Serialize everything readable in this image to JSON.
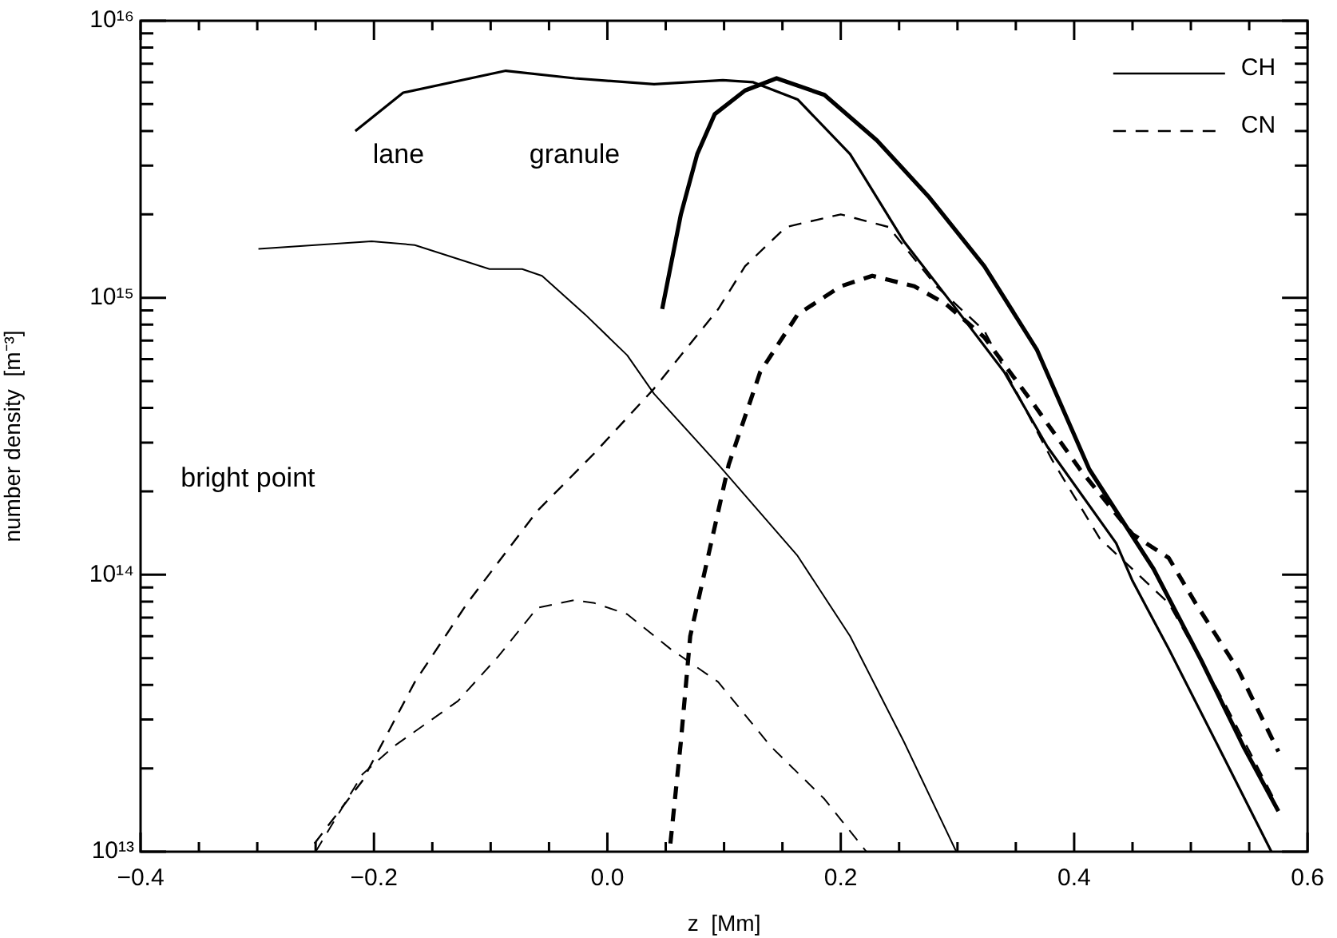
{
  "chart_data": {
    "type": "line",
    "xlabel": "z  [Mm]",
    "ylabel": "number density  [m⁻³]",
    "log": "y",
    "legend": "top right",
    "xlim": [
      -0.4,
      0.6
    ],
    "ylim": [
      10000000000000.0,
      1e+16
    ],
    "xticks": [
      {
        "value": -0.4,
        "label": "−0.4"
      },
      {
        "value": -0.35,
        "label": null
      },
      {
        "value": -0.3,
        "label": null
      },
      {
        "value": -0.25,
        "label": null
      },
      {
        "value": -0.2,
        "label": "−0.2"
      },
      {
        "value": -0.15,
        "label": null
      },
      {
        "value": -0.1,
        "label": null
      },
      {
        "value": -0.05,
        "label": null
      },
      {
        "value": 0,
        "label": "0.0"
      },
      {
        "value": 0.05,
        "label": null
      },
      {
        "value": 0.1,
        "label": null
      },
      {
        "value": 0.15,
        "label": null
      },
      {
        "value": 0.2,
        "label": "0.2"
      },
      {
        "value": 0.25,
        "label": null
      },
      {
        "value": 0.3,
        "label": null
      },
      {
        "value": 0.35,
        "label": null
      },
      {
        "value": 0.4,
        "label": "0.4"
      },
      {
        "value": 0.45,
        "label": null
      },
      {
        "value": 0.5,
        "label": null
      },
      {
        "value": 0.55,
        "label": null
      },
      {
        "value": 0.6,
        "label": "0.6"
      }
    ],
    "yticks": [
      {
        "value": 10000000000000.0,
        "label": "10¹³"
      },
      {
        "value": 20000000000000.0,
        "label": null
      },
      {
        "value": 30000000000000.0,
        "label": null
      },
      {
        "value": 40000000000000.0,
        "label": null
      },
      {
        "value": 50000000000000.0,
        "label": null
      },
      {
        "value": 60000000000000.0,
        "label": null
      },
      {
        "value": 70000000000000.0,
        "label": null
      },
      {
        "value": 80000000000000.0,
        "label": null
      },
      {
        "value": 90000000000000.0,
        "label": null
      },
      {
        "value": 100000000000000.0,
        "label": "10¹⁴"
      },
      {
        "value": 200000000000000.0,
        "label": null
      },
      {
        "value": 300000000000000.0,
        "label": null
      },
      {
        "value": 400000000000000.0,
        "label": null
      },
      {
        "value": 500000000000000.0,
        "label": null
      },
      {
        "value": 600000000000000.0,
        "label": null
      },
      {
        "value": 700000000000000.0,
        "label": null
      },
      {
        "value": 800000000000000.0,
        "label": null
      },
      {
        "value": 900000000000000.0,
        "label": null
      },
      {
        "value": 1000000000000000.0,
        "label": "10¹⁵"
      },
      {
        "value": 2000000000000000.0,
        "label": null
      },
      {
        "value": 3000000000000000.0,
        "label": null
      },
      {
        "value": 4000000000000000.0,
        "label": null
      },
      {
        "value": 5000000000000000.0,
        "label": null
      },
      {
        "value": 6000000000000000.0,
        "label": null
      },
      {
        "value": 7000000000000000.0,
        "label": null
      },
      {
        "value": 8000000000000000.0,
        "label": null
      },
      {
        "value": 9000000000000000.0,
        "label": null
      },
      {
        "value": 1e+16,
        "label": "10¹⁶"
      }
    ],
    "series": [
      {
        "name": "CH",
        "color": "#000000",
        "line_style": "solid",
        "x": [
          -0.216,
          -0.175,
          -0.087,
          -0.028,
          0.04,
          0.099,
          0.125,
          0.163,
          0.208,
          0.254,
          0.299,
          0.34,
          0.377,
          0.436,
          0.45,
          0.481,
          0.528,
          0.569
        ],
        "values": [
          4000000000000000.0,
          5500000000000000.0,
          6600000000000000.0,
          6200000000000000.0,
          5900000000000000.0,
          6100000000000000.0,
          6000000000000000.0,
          5200000000000000.0,
          3300000000000000.0,
          1600000000000000.0,
          910000000000000.0,
          540000000000000.0,
          290000000000000.0,
          130000000000000.0,
          95000000000000.0,
          54000000000000.0,
          22000000000000.0,
          10000000000000.0
        ]
      },
      {
        "color": "#000000",
        "line_style": "solid",
        "x": [
          0.047,
          0.063,
          0.077,
          0.092,
          0.118,
          0.145,
          0.186,
          0.231,
          0.276,
          0.323,
          0.368,
          0.413,
          0.468,
          0.509,
          0.545,
          0.575
        ],
        "values": [
          910000000000000.0,
          2000000000000000.0,
          3300000000000000.0,
          4600000000000000.0,
          5600000000000000.0,
          6200000000000000.0,
          5400000000000000.0,
          3700000000000000.0,
          2300000000000000.0,
          1300000000000000.0,
          650000000000000.0,
          240000000000000.0,
          105000000000000.0,
          49000000000000.0,
          24000000000000.0,
          14000000000000.0
        ]
      },
      {
        "color": "#000000",
        "line_style": "solid",
        "x": [
          -0.299,
          -0.202,
          -0.165,
          -0.101,
          -0.073,
          -0.056,
          -0.019,
          0.017,
          0.04,
          0.095,
          0.163,
          0.208,
          0.254,
          0.299
        ],
        "values": [
          1500000000000000.0,
          1600000000000000.0,
          1550000000000000.0,
          1270000000000000.0,
          1270000000000000.0,
          1200000000000000.0,
          870000000000000.0,
          620000000000000.0,
          450000000000000.0,
          250000000000000.0,
          117000000000000.0,
          60000000000000.0,
          25000000000000.0,
          10000000000000.0
        ]
      },
      {
        "name": "CN",
        "color": "#000000",
        "line_style": "dashed",
        "x": [
          -0.251,
          -0.21,
          -0.165,
          -0.12,
          -0.06,
          -0.011,
          0.04,
          0.095,
          0.118,
          0.153,
          0.2,
          0.241,
          0.282,
          0.323,
          0.381,
          0.422,
          0.481,
          0.528,
          0.573
        ],
        "values": [
          10700000000000.0,
          18000000000000.0,
          41000000000000.0,
          79000000000000.0,
          170000000000000.0,
          275000000000000.0,
          470000000000000.0,
          910000000000000.0,
          1300000000000000.0,
          1800000000000000.0,
          2000000000000000.0,
          1800000000000000.0,
          1100000000000000.0,
          760000000000000.0,
          260000000000000.0,
          135000000000000.0,
          79000000000000.0,
          35000000000000.0,
          15000000000000.0
        ]
      },
      {
        "color": "#000000",
        "line_style": "dashed",
        "x": [
          0.054,
          0.063,
          0.071,
          0.104,
          0.131,
          0.163,
          0.2,
          0.227,
          0.263,
          0.29,
          0.323,
          0.364,
          0.405,
          0.45,
          0.481,
          0.504,
          0.541,
          0.575
        ],
        "values": [
          10700000000000.0,
          25000000000000.0,
          60000000000000.0,
          250000000000000.0,
          540000000000000.0,
          870000000000000.0,
          1100000000000000.0,
          1200000000000000.0,
          1100000000000000.0,
          950000000000000.0,
          720000000000000.0,
          420000000000000.0,
          240000000000000.0,
          140000000000000.0,
          115000000000000.0,
          79000000000000.0,
          45000000000000.0,
          23000000000000.0
        ]
      },
      {
        "color": "#000000",
        "line_style": "dashed",
        "x": [
          -0.25,
          -0.21,
          -0.183,
          -0.128,
          -0.093,
          -0.06,
          -0.028,
          -0.011,
          0.017,
          0.054,
          0.095,
          0.14,
          0.186,
          0.222
        ],
        "values": [
          10000000000000.0,
          19000000000000.0,
          24000000000000.0,
          35000000000000.0,
          51000000000000.0,
          76000000000000.0,
          81000000000000.0,
          79000000000000.0,
          72000000000000.0,
          54000000000000.0,
          41000000000000.0,
          24000000000000.0,
          15500000000000.0,
          10000000000000.0
        ]
      }
    ],
    "annotations": [
      "lane",
      "granule",
      "bright point"
    ]
  }
}
